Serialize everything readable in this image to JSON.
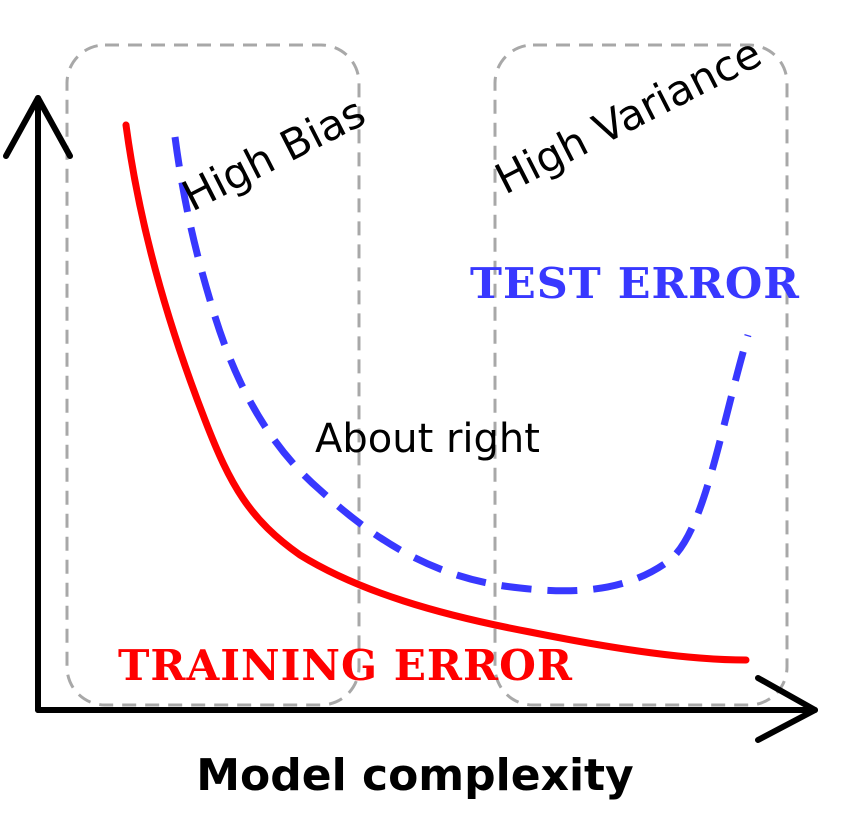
{
  "regions": {
    "left_label": "High Bias",
    "right_label": "High Variance",
    "middle_label": "About right"
  },
  "curves": {
    "test_label": "TEST ERROR",
    "training_label": "TRAINING ERROR"
  },
  "axes": {
    "xlabel": "Model complexity"
  },
  "colors": {
    "test_error": "#3838ff",
    "training_error": "#ff0000",
    "axis": "#000000",
    "region_border": "#a8a8a8",
    "background": "#ffffff"
  }
}
